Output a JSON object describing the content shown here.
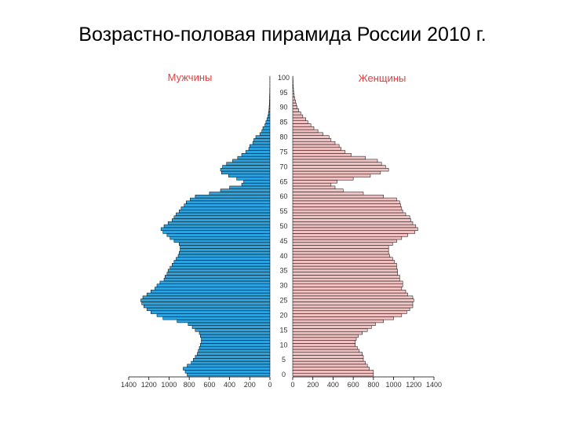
{
  "chart_data": {
    "type": "bar",
    "orientation": "horizontal-pyramid",
    "title": "Возрастно-половая пирамида России 2010 г.",
    "left_label": "Мужчины",
    "right_label": "Женщины",
    "age_ticks": [
      "0",
      "5",
      "10",
      "15",
      "20",
      "25",
      "30",
      "35",
      "40",
      "45",
      "50",
      "55",
      "60",
      "65",
      "70",
      "75",
      "80",
      "85",
      "90",
      "95",
      "100"
    ],
    "x_ticks_left": [
      "1400",
      "1200",
      "1000",
      "800",
      "600",
      "400",
      "200",
      "0"
    ],
    "x_ticks_right": [
      "0",
      "200",
      "400",
      "600",
      "800",
      "1000",
      "1200",
      "1400"
    ],
    "xlim": [
      0,
      1400
    ],
    "colors": {
      "male": "#2aa3e0",
      "female": "#f2c2c2",
      "stroke": "#000000"
    },
    "ages": [
      0,
      1,
      2,
      3,
      4,
      5,
      6,
      7,
      8,
      9,
      10,
      11,
      12,
      13,
      14,
      15,
      16,
      17,
      18,
      19,
      20,
      21,
      22,
      23,
      24,
      25,
      26,
      27,
      28,
      29,
      30,
      31,
      32,
      33,
      34,
      35,
      36,
      37,
      38,
      39,
      40,
      41,
      42,
      43,
      44,
      45,
      46,
      47,
      48,
      49,
      50,
      51,
      52,
      53,
      54,
      55,
      56,
      57,
      58,
      59,
      60,
      61,
      62,
      63,
      64,
      65,
      66,
      67,
      68,
      69,
      70,
      71,
      72,
      73,
      74,
      75,
      76,
      77,
      78,
      79,
      80,
      81,
      82,
      83,
      84,
      85,
      86,
      87,
      88,
      89,
      90,
      91,
      92,
      93,
      94,
      95,
      96,
      97,
      98,
      99,
      100
    ],
    "series": [
      {
        "name": "Мужчины",
        "values": [
          820,
          840,
          860,
          820,
          780,
          760,
          740,
          720,
          710,
          700,
          690,
          680,
          680,
          690,
          700,
          740,
          770,
          810,
          920,
          1060,
          1120,
          1180,
          1220,
          1250,
          1270,
          1280,
          1260,
          1220,
          1180,
          1140,
          1120,
          1090,
          1050,
          1040,
          1020,
          1010,
          990,
          970,
          950,
          930,
          910,
          900,
          890,
          890,
          900,
          950,
          990,
          1020,
          1060,
          1080,
          1050,
          1010,
          970,
          950,
          930,
          900,
          880,
          850,
          830,
          790,
          740,
          600,
          490,
          400,
          280,
          260,
          330,
          410,
          480,
          490,
          470,
          430,
          370,
          320,
          280,
          240,
          210,
          200,
          170,
          160,
          140,
          100,
          80,
          70,
          50,
          40,
          30,
          20,
          15,
          10,
          8,
          6,
          5,
          4,
          3,
          2,
          2,
          1,
          1,
          1,
          1
        ]
      },
      {
        "name": "Женщины",
        "values": [
          800,
          800,
          760,
          740,
          720,
          700,
          700,
          690,
          660,
          640,
          620,
          620,
          630,
          650,
          690,
          740,
          780,
          820,
          900,
          1000,
          1080,
          1130,
          1160,
          1190,
          1190,
          1200,
          1190,
          1140,
          1120,
          1080,
          1090,
          1090,
          1060,
          1060,
          1040,
          1040,
          1030,
          1030,
          1010,
          990,
          960,
          950,
          950,
          950,
          990,
          1030,
          1080,
          1140,
          1210,
          1240,
          1220,
          1190,
          1170,
          1160,
          1120,
          1090,
          1080,
          1070,
          1060,
          1030,
          900,
          700,
          500,
          420,
          380,
          440,
          600,
          770,
          870,
          950,
          920,
          880,
          840,
          720,
          580,
          520,
          480,
          460,
          420,
          380,
          360,
          300,
          250,
          210,
          180,
          150,
          130,
          100,
          80,
          60,
          45,
          35,
          28,
          20,
          15,
          10,
          8,
          6,
          4,
          3,
          2
        ]
      }
    ]
  }
}
